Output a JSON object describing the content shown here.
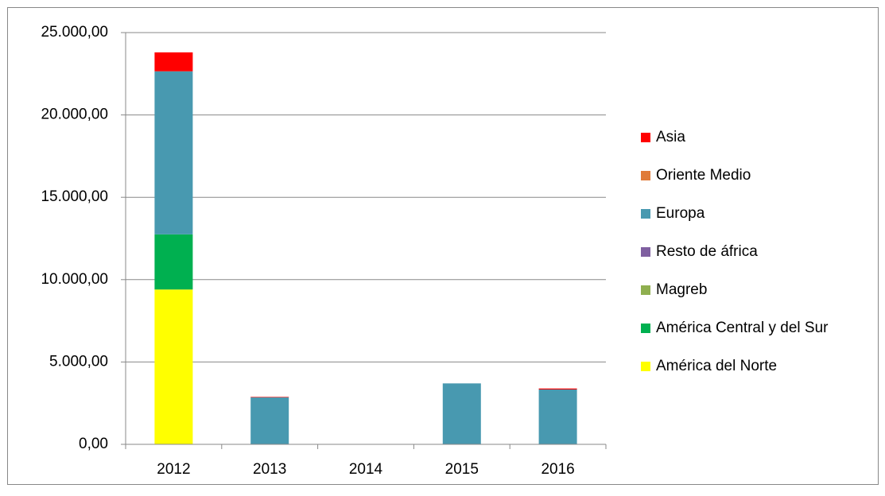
{
  "chart_data": {
    "type": "stacked_bar",
    "categories": [
      "2012",
      "2013",
      "2014",
      "2015",
      "2016"
    ],
    "series": [
      {
        "name": "América del Norte",
        "color": "#ffff00",
        "values": [
          9400,
          0,
          0,
          0,
          0
        ]
      },
      {
        "name": "América Central y del Sur",
        "color": "#00b050",
        "values": [
          3350,
          0,
          0,
          0,
          0
        ]
      },
      {
        "name": "Magreb",
        "color": "#8faf4f",
        "values": [
          0,
          0,
          0,
          0,
          0
        ]
      },
      {
        "name": "Resto de áfrica",
        "color": "#7f5fa0",
        "values": [
          0,
          0,
          0,
          0,
          0
        ]
      },
      {
        "name": "Europa",
        "color": "#4899b0",
        "values": [
          9900,
          2850,
          20,
          3700,
          3330
        ]
      },
      {
        "name": "Oriente Medio",
        "color": "#e07b39",
        "values": [
          0,
          0,
          0,
          0,
          0
        ]
      },
      {
        "name": "Asia",
        "color": "#ff0000",
        "values": [
          1150,
          30,
          0,
          0,
          60
        ]
      }
    ],
    "ylim": [
      0,
      25000
    ],
    "yticks": [
      {
        "value": 0,
        "label": "0,00"
      },
      {
        "value": 5000,
        "label": "5.000,00"
      },
      {
        "value": 10000,
        "label": "10.000,00"
      },
      {
        "value": 15000,
        "label": "15.000,00"
      },
      {
        "value": 20000,
        "label": "20.000,00"
      },
      {
        "value": 25000,
        "label": "25.000,00"
      }
    ],
    "grid": true,
    "legend": "right"
  }
}
